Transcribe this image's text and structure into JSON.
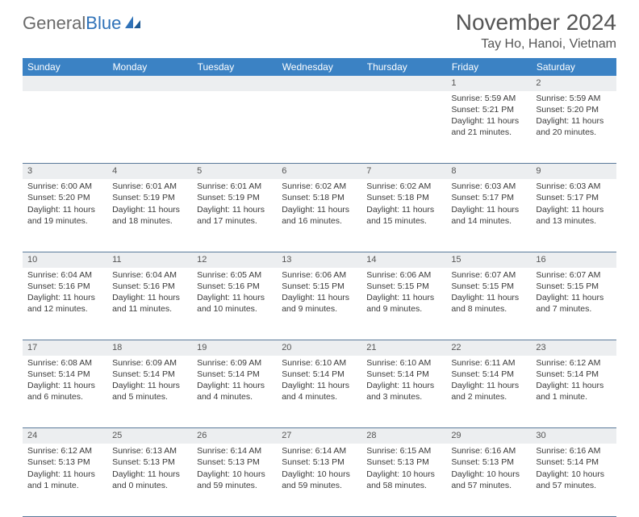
{
  "logo": {
    "text1": "General",
    "text2": "Blue"
  },
  "title": "November 2024",
  "location": "Tay Ho, Hanoi, Vietnam",
  "colors": {
    "header_bg": "#3b82c4",
    "header_text": "#ffffff",
    "daynum_bg": "#eceef0",
    "border": "#5a7a9a",
    "logo_gray": "#6a6a6a",
    "logo_blue": "#2f72b8"
  },
  "weekdays": [
    "Sunday",
    "Monday",
    "Tuesday",
    "Wednesday",
    "Thursday",
    "Friday",
    "Saturday"
  ],
  "weeks": [
    {
      "nums": [
        "",
        "",
        "",
        "",
        "",
        "1",
        "2"
      ],
      "cells": [
        null,
        null,
        null,
        null,
        null,
        {
          "sunrise": "Sunrise: 5:59 AM",
          "sunset": "Sunset: 5:21 PM",
          "daylight": "Daylight: 11 hours and 21 minutes."
        },
        {
          "sunrise": "Sunrise: 5:59 AM",
          "sunset": "Sunset: 5:20 PM",
          "daylight": "Daylight: 11 hours and 20 minutes."
        }
      ]
    },
    {
      "nums": [
        "3",
        "4",
        "5",
        "6",
        "7",
        "8",
        "9"
      ],
      "cells": [
        {
          "sunrise": "Sunrise: 6:00 AM",
          "sunset": "Sunset: 5:20 PM",
          "daylight": "Daylight: 11 hours and 19 minutes."
        },
        {
          "sunrise": "Sunrise: 6:01 AM",
          "sunset": "Sunset: 5:19 PM",
          "daylight": "Daylight: 11 hours and 18 minutes."
        },
        {
          "sunrise": "Sunrise: 6:01 AM",
          "sunset": "Sunset: 5:19 PM",
          "daylight": "Daylight: 11 hours and 17 minutes."
        },
        {
          "sunrise": "Sunrise: 6:02 AM",
          "sunset": "Sunset: 5:18 PM",
          "daylight": "Daylight: 11 hours and 16 minutes."
        },
        {
          "sunrise": "Sunrise: 6:02 AM",
          "sunset": "Sunset: 5:18 PM",
          "daylight": "Daylight: 11 hours and 15 minutes."
        },
        {
          "sunrise": "Sunrise: 6:03 AM",
          "sunset": "Sunset: 5:17 PM",
          "daylight": "Daylight: 11 hours and 14 minutes."
        },
        {
          "sunrise": "Sunrise: 6:03 AM",
          "sunset": "Sunset: 5:17 PM",
          "daylight": "Daylight: 11 hours and 13 minutes."
        }
      ]
    },
    {
      "nums": [
        "10",
        "11",
        "12",
        "13",
        "14",
        "15",
        "16"
      ],
      "cells": [
        {
          "sunrise": "Sunrise: 6:04 AM",
          "sunset": "Sunset: 5:16 PM",
          "daylight": "Daylight: 11 hours and 12 minutes."
        },
        {
          "sunrise": "Sunrise: 6:04 AM",
          "sunset": "Sunset: 5:16 PM",
          "daylight": "Daylight: 11 hours and 11 minutes."
        },
        {
          "sunrise": "Sunrise: 6:05 AM",
          "sunset": "Sunset: 5:16 PM",
          "daylight": "Daylight: 11 hours and 10 minutes."
        },
        {
          "sunrise": "Sunrise: 6:06 AM",
          "sunset": "Sunset: 5:15 PM",
          "daylight": "Daylight: 11 hours and 9 minutes."
        },
        {
          "sunrise": "Sunrise: 6:06 AM",
          "sunset": "Sunset: 5:15 PM",
          "daylight": "Daylight: 11 hours and 9 minutes."
        },
        {
          "sunrise": "Sunrise: 6:07 AM",
          "sunset": "Sunset: 5:15 PM",
          "daylight": "Daylight: 11 hours and 8 minutes."
        },
        {
          "sunrise": "Sunrise: 6:07 AM",
          "sunset": "Sunset: 5:15 PM",
          "daylight": "Daylight: 11 hours and 7 minutes."
        }
      ]
    },
    {
      "nums": [
        "17",
        "18",
        "19",
        "20",
        "21",
        "22",
        "23"
      ],
      "cells": [
        {
          "sunrise": "Sunrise: 6:08 AM",
          "sunset": "Sunset: 5:14 PM",
          "daylight": "Daylight: 11 hours and 6 minutes."
        },
        {
          "sunrise": "Sunrise: 6:09 AM",
          "sunset": "Sunset: 5:14 PM",
          "daylight": "Daylight: 11 hours and 5 minutes."
        },
        {
          "sunrise": "Sunrise: 6:09 AM",
          "sunset": "Sunset: 5:14 PM",
          "daylight": "Daylight: 11 hours and 4 minutes."
        },
        {
          "sunrise": "Sunrise: 6:10 AM",
          "sunset": "Sunset: 5:14 PM",
          "daylight": "Daylight: 11 hours and 4 minutes."
        },
        {
          "sunrise": "Sunrise: 6:10 AM",
          "sunset": "Sunset: 5:14 PM",
          "daylight": "Daylight: 11 hours and 3 minutes."
        },
        {
          "sunrise": "Sunrise: 6:11 AM",
          "sunset": "Sunset: 5:14 PM",
          "daylight": "Daylight: 11 hours and 2 minutes."
        },
        {
          "sunrise": "Sunrise: 6:12 AM",
          "sunset": "Sunset: 5:14 PM",
          "daylight": "Daylight: 11 hours and 1 minute."
        }
      ]
    },
    {
      "nums": [
        "24",
        "25",
        "26",
        "27",
        "28",
        "29",
        "30"
      ],
      "cells": [
        {
          "sunrise": "Sunrise: 6:12 AM",
          "sunset": "Sunset: 5:13 PM",
          "daylight": "Daylight: 11 hours and 1 minute."
        },
        {
          "sunrise": "Sunrise: 6:13 AM",
          "sunset": "Sunset: 5:13 PM",
          "daylight": "Daylight: 11 hours and 0 minutes."
        },
        {
          "sunrise": "Sunrise: 6:14 AM",
          "sunset": "Sunset: 5:13 PM",
          "daylight": "Daylight: 10 hours and 59 minutes."
        },
        {
          "sunrise": "Sunrise: 6:14 AM",
          "sunset": "Sunset: 5:13 PM",
          "daylight": "Daylight: 10 hours and 59 minutes."
        },
        {
          "sunrise": "Sunrise: 6:15 AM",
          "sunset": "Sunset: 5:13 PM",
          "daylight": "Daylight: 10 hours and 58 minutes."
        },
        {
          "sunrise": "Sunrise: 6:16 AM",
          "sunset": "Sunset: 5:13 PM",
          "daylight": "Daylight: 10 hours and 57 minutes."
        },
        {
          "sunrise": "Sunrise: 6:16 AM",
          "sunset": "Sunset: 5:14 PM",
          "daylight": "Daylight: 10 hours and 57 minutes."
        }
      ]
    }
  ]
}
